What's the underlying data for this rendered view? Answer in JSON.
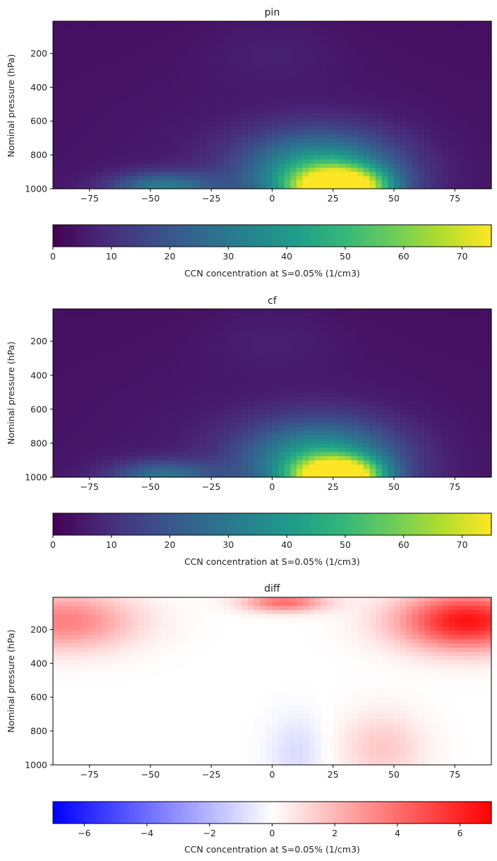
{
  "chart_data": [
    {
      "type": "heatmap",
      "title": "pin",
      "ylabel": "Nominal pressure (hPa)",
      "xlabel": "",
      "xlim": [
        -90,
        90
      ],
      "ylim": [
        1000,
        10
      ],
      "x_ticks": [
        -75,
        -50,
        -25,
        0,
        25,
        50,
        75
      ],
      "y_ticks": [
        200,
        400,
        600,
        800,
        1000
      ],
      "colormap": "viridis",
      "colorbar": {
        "label": "CCN concentration at S=0.05% (1/cm3)",
        "range": [
          0,
          75
        ],
        "ticks": [
          0,
          10,
          20,
          30,
          40,
          50,
          60,
          70
        ],
        "orientation": "horizontal"
      },
      "features": [
        {
          "lat": 28,
          "pressure": 1000,
          "value": 75,
          "lat_width": 13,
          "p_width": 80
        },
        {
          "lat": 20,
          "pressure": 900,
          "value": 40,
          "lat_width": 22,
          "p_width": 160
        },
        {
          "lat": -45,
          "pressure": 990,
          "value": 25,
          "lat_width": 15,
          "p_width": 60
        }
      ]
    },
    {
      "type": "heatmap",
      "title": "cf",
      "ylabel": "Nominal pressure (hPa)",
      "xlabel": "",
      "xlim": [
        -90,
        90
      ],
      "ylim": [
        1000,
        10
      ],
      "x_ticks": [
        -75,
        -50,
        -25,
        0,
        25,
        50,
        75
      ],
      "y_ticks": [
        200,
        400,
        600,
        800,
        1000
      ],
      "colormap": "viridis",
      "colorbar": {
        "label": "CCN concentration at S=0.05% (1/cm3)",
        "range": [
          0,
          75
        ],
        "ticks": [
          0,
          10,
          20,
          30,
          40,
          50,
          60,
          70
        ],
        "orientation": "horizontal"
      },
      "features": [
        {
          "lat": 27,
          "pressure": 1000,
          "value": 75,
          "lat_width": 12,
          "p_width": 75
        },
        {
          "lat": 20,
          "pressure": 900,
          "value": 38,
          "lat_width": 22,
          "p_width": 160
        },
        {
          "lat": -45,
          "pressure": 990,
          "value": 22,
          "lat_width": 15,
          "p_width": 60
        }
      ]
    },
    {
      "type": "heatmap",
      "title": "diff",
      "ylabel": "Nominal pressure (hPa)",
      "xlabel": "",
      "xlim": [
        -90,
        90
      ],
      "ylim": [
        1000,
        10
      ],
      "x_ticks": [
        -75,
        -50,
        -25,
        0,
        25,
        50,
        75
      ],
      "y_ticks": [
        200,
        400,
        600,
        800,
        1000
      ],
      "colormap": "bwr",
      "colorbar": {
        "label": "CCN concentration at S=0.05% (1/cm3)",
        "range": [
          -7,
          7
        ],
        "ticks": [
          -6,
          -4,
          -2,
          0,
          2,
          4,
          6
        ],
        "orientation": "horizontal"
      },
      "features": [
        {
          "lat": 80,
          "pressure": 150,
          "value": 6.5,
          "lat_width": 20,
          "p_width": 120
        },
        {
          "lat": -85,
          "pressure": 150,
          "value": 3.5,
          "lat_width": 20,
          "p_width": 120
        },
        {
          "lat": 5,
          "pressure": 40,
          "value": 4,
          "lat_width": 12,
          "p_width": 40
        },
        {
          "lat": 45,
          "pressure": 900,
          "value": 1.5,
          "lat_width": 12,
          "p_width": 150
        },
        {
          "lat": 10,
          "pressure": 930,
          "value": -1,
          "lat_width": 8,
          "p_width": 150
        }
      ]
    }
  ]
}
